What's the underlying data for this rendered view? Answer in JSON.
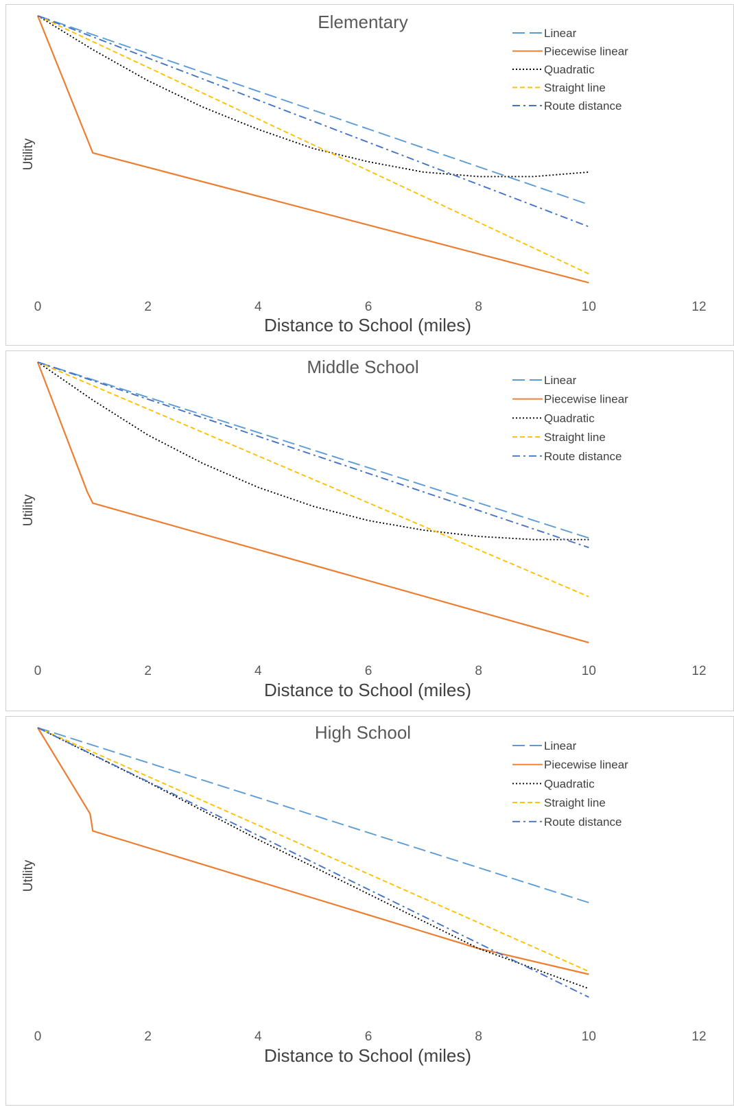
{
  "chart_data": [
    {
      "type": "line",
      "title": "Elementary",
      "xlabel": "Distance to School (miles)",
      "ylabel": "Utility",
      "xlim": [
        0,
        12
      ],
      "ylim": [
        -10,
        0
      ],
      "xticks": [
        "0",
        "2",
        "4",
        "6",
        "8",
        "10",
        "12"
      ],
      "legend_position": "top-right",
      "series": [
        {
          "name": "Linear",
          "color": "#5b9bd5",
          "dash": "long-dash",
          "x": [
            0,
            10
          ],
          "y": [
            0,
            -6.4
          ]
        },
        {
          "name": "Piecewise linear",
          "color": "#ed7d31",
          "dash": "solid",
          "x": [
            0,
            1,
            10
          ],
          "y": [
            0,
            -4.65,
            -9.05
          ]
        },
        {
          "name": "Quadratic",
          "color": "#000000",
          "dash": "dotted",
          "x": [
            0,
            1,
            2,
            3,
            4,
            5,
            6,
            7,
            8,
            9,
            10
          ],
          "y": [
            0,
            -1.15,
            -2.2,
            -3.1,
            -3.85,
            -4.5,
            -4.95,
            -5.3,
            -5.45,
            -5.45,
            -5.3
          ]
        },
        {
          "name": "Straight line",
          "color": "#ffc000",
          "dash": "short-dash",
          "x": [
            0,
            10
          ],
          "y": [
            0,
            -8.75
          ]
        },
        {
          "name": "Route distance",
          "color": "#4472c4",
          "dash": "dash-dot",
          "x": [
            0,
            10
          ],
          "y": [
            0,
            -7.15
          ]
        }
      ]
    },
    {
      "type": "line",
      "title": "Middle School",
      "xlabel": "Distance to School (miles)",
      "ylabel": "Utility",
      "xlim": [
        0,
        12
      ],
      "ylim": [
        -10,
        0
      ],
      "xticks": [
        "0",
        "2",
        "4",
        "6",
        "8",
        "10",
        "12"
      ],
      "legend_position": "top-right",
      "series": [
        {
          "name": "Linear",
          "color": "#5b9bd5",
          "dash": "long-dash",
          "x": [
            0,
            10
          ],
          "y": [
            0,
            -5.55
          ]
        },
        {
          "name": "Piecewise linear",
          "color": "#ed7d31",
          "dash": "solid",
          "x": [
            0,
            0.9,
            1,
            10
          ],
          "y": [
            0,
            -4.1,
            -4.45,
            -8.85
          ]
        },
        {
          "name": "Quadratic",
          "color": "#000000",
          "dash": "dotted",
          "x": [
            0,
            1,
            2,
            3,
            4,
            5,
            6,
            7,
            8,
            9,
            10
          ],
          "y": [
            0,
            -1.2,
            -2.3,
            -3.2,
            -3.95,
            -4.55,
            -5.0,
            -5.3,
            -5.5,
            -5.6,
            -5.6
          ]
        },
        {
          "name": "Straight line",
          "color": "#ffc000",
          "dash": "short-dash",
          "x": [
            0,
            10
          ],
          "y": [
            0,
            -7.4
          ]
        },
        {
          "name": "Route distance",
          "color": "#4472c4",
          "dash": "dash-dot",
          "x": [
            0,
            10
          ],
          "y": [
            0,
            -5.85
          ]
        }
      ]
    },
    {
      "type": "line",
      "title": "High School",
      "xlabel": "Distance to School (miles)",
      "ylabel": "Utility",
      "xlim": [
        0,
        12
      ],
      "ylim": [
        -10,
        0
      ],
      "xticks": [
        "0",
        "2",
        "4",
        "6",
        "8",
        "10",
        "12"
      ],
      "legend_position": "top-right",
      "series": [
        {
          "name": "Linear",
          "color": "#5b9bd5",
          "dash": "long-dash",
          "x": [
            0,
            10
          ],
          "y": [
            0,
            -6.1
          ]
        },
        {
          "name": "Piecewise linear",
          "color": "#ed7d31",
          "dash": "solid",
          "x": [
            0,
            0.95,
            1,
            8,
            10
          ],
          "y": [
            0,
            -3.0,
            -3.6,
            -7.7,
            -8.6
          ]
        },
        {
          "name": "Quadratic",
          "color": "#000000",
          "dash": "dotted",
          "x": [
            0,
            2,
            4,
            6,
            8,
            10
          ],
          "y": [
            0,
            -1.9,
            -3.9,
            -5.8,
            -7.7,
            -9.1
          ]
        },
        {
          "name": "Straight line",
          "color": "#ffc000",
          "dash": "short-dash",
          "x": [
            0,
            10
          ],
          "y": [
            0,
            -8.5
          ]
        },
        {
          "name": "Route distance",
          "color": "#4472c4",
          "dash": "dash-dot",
          "x": [
            0,
            10
          ],
          "y": [
            0,
            -9.4
          ]
        }
      ]
    }
  ]
}
